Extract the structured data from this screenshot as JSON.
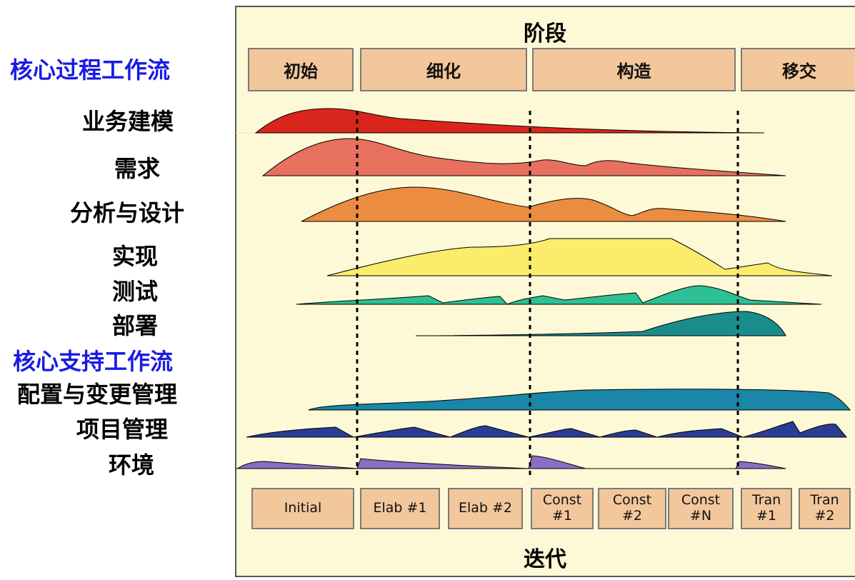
{
  "header": {
    "phases_title": "阶段"
  },
  "footer": {
    "iterations_title": "迭代"
  },
  "phases": [
    {
      "label": "初始"
    },
    {
      "label": "细化"
    },
    {
      "label": "构造"
    },
    {
      "label": "移交"
    }
  ],
  "iterations": [
    {
      "label": "Initial"
    },
    {
      "label": "Elab #1"
    },
    {
      "label": "Elab #2"
    },
    {
      "label": "Const\n#1"
    },
    {
      "label": "Const\n#2"
    },
    {
      "label": "Const\n#N"
    },
    {
      "label": "Tran\n#1"
    },
    {
      "label": "Tran\n#2"
    }
  ],
  "core_process": {
    "heading": "核心过程工作流",
    "items": [
      {
        "label": "业务建模",
        "color": "#d9261c"
      },
      {
        "label": "需求",
        "color": "#e8705e"
      },
      {
        "label": "分析与设计",
        "color": "#ec8c40"
      },
      {
        "label": "实现",
        "color": "#fbec6c"
      },
      {
        "label": "测试",
        "color": "#2dc094"
      },
      {
        "label": "部署",
        "color": "#1a8c8c"
      }
    ]
  },
  "core_support": {
    "heading": "核心支持工作流",
    "items": [
      {
        "label": "配置与变更管理",
        "color": "#1a86a8"
      },
      {
        "label": "项目管理",
        "color": "#2a3c94"
      },
      {
        "label": "环境",
        "color": "#8c6cc4"
      }
    ]
  }
}
